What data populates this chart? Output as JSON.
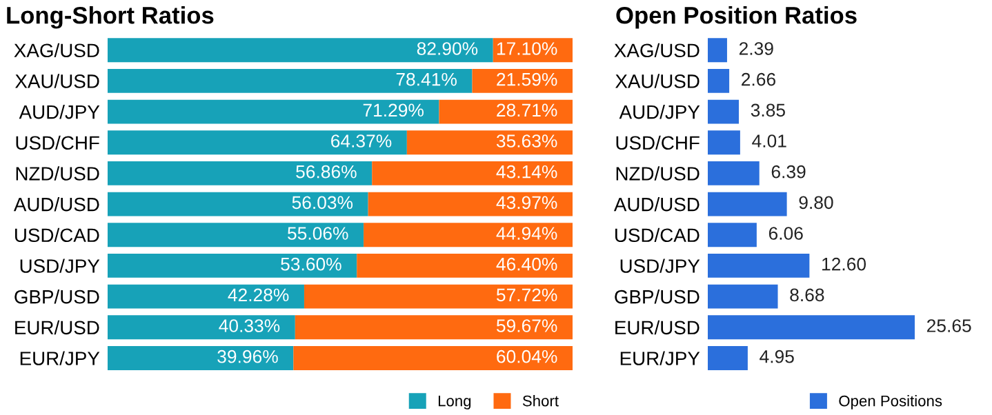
{
  "chart_data": [
    {
      "type": "bar",
      "title": "Long-Short Ratios",
      "orientation": "horizontal",
      "stacked": true,
      "legend": "bottom right",
      "grid": false,
      "categories": [
        "XAG/USD",
        "XAU/USD",
        "AUD/JPY",
        "USD/CHF",
        "NZD/USD",
        "AUD/USD",
        "USD/CAD",
        "USD/JPY",
        "GBP/USD",
        "EUR/USD",
        "EUR/JPY"
      ],
      "series": [
        {
          "name": "Long",
          "color": "#17a2b8",
          "values": [
            82.9,
            78.41,
            71.29,
            64.37,
            56.86,
            56.03,
            55.06,
            53.6,
            42.28,
            40.33,
            39.96
          ],
          "value_labels": [
            "82.90%",
            "78.41%",
            "71.29%",
            "64.37%",
            "56.86%",
            "56.03%",
            "55.06%",
            "53.60%",
            "42.28%",
            "40.33%",
            "39.96%"
          ]
        },
        {
          "name": "Short",
          "color": "#ff6a10",
          "values": [
            17.1,
            21.59,
            28.71,
            35.63,
            43.14,
            43.97,
            44.94,
            46.4,
            57.72,
            59.67,
            60.04
          ],
          "value_labels": [
            "17.10%",
            "21.59%",
            "28.71%",
            "35.63%",
            "43.14%",
            "43.97%",
            "44.94%",
            "46.40%",
            "57.72%",
            "59.67%",
            "60.04%"
          ]
        }
      ]
    },
    {
      "type": "bar",
      "title": "Open Position Ratios",
      "orientation": "horizontal",
      "legend": "bottom right",
      "grid": false,
      "categories": [
        "XAG/USD",
        "XAU/USD",
        "AUD/JPY",
        "USD/CHF",
        "NZD/USD",
        "AUD/USD",
        "USD/CAD",
        "USD/JPY",
        "GBP/USD",
        "EUR/USD",
        "EUR/JPY"
      ],
      "series": [
        {
          "name": "Open Positions",
          "color": "#2b6fdc",
          "values": [
            2.39,
            2.66,
            3.85,
            4.01,
            6.39,
            9.8,
            6.06,
            12.6,
            8.68,
            25.65,
            4.95
          ],
          "value_labels": [
            "2.39",
            "2.66",
            "3.85",
            "4.01",
            "6.39",
            "9.80",
            "6.06",
            "12.60",
            "8.68",
            "25.65",
            "4.95"
          ]
        }
      ]
    }
  ]
}
